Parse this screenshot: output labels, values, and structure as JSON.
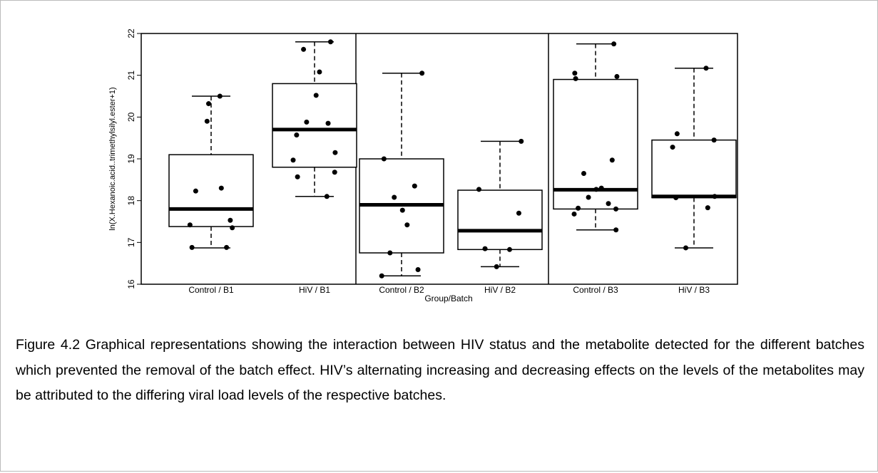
{
  "chart_data": {
    "type": "box",
    "ylabel": "ln(X.Hexanoic.acid..trimethylsilyl.ester+1)",
    "xlabel": "Group/Batch",
    "ylim": [
      16,
      22
    ],
    "yticks": [
      16,
      17,
      18,
      19,
      20,
      21,
      22
    ],
    "categories": [
      "Control / B1",
      "HiV / B1",
      "Control / B2",
      "HiV / B2",
      "Control / B3",
      "HiV / B3"
    ],
    "boxes": [
      {
        "min": 16.87,
        "q1": 17.38,
        "median": 17.8,
        "q3": 19.1,
        "max": 20.5,
        "points": [
          20.5,
          20.32,
          19.9,
          18.3,
          18.23,
          17.53,
          17.42,
          17.35,
          16.88,
          16.88
        ]
      },
      {
        "min": 18.1,
        "q1": 18.8,
        "median": 19.7,
        "q3": 20.8,
        "max": 21.8,
        "points": [
          21.8,
          21.62,
          21.08,
          20.52,
          19.88,
          19.85,
          19.57,
          19.15,
          18.97,
          18.68,
          18.57,
          18.1
        ]
      },
      {
        "min": 16.2,
        "q1": 16.75,
        "median": 17.9,
        "q3": 19.0,
        "max": 21.05,
        "points": [
          21.05,
          19.0,
          18.35,
          18.08,
          17.77,
          17.42,
          16.75,
          16.35,
          16.2
        ]
      },
      {
        "min": 16.42,
        "q1": 16.83,
        "median": 17.28,
        "q3": 18.25,
        "max": 19.42,
        "points": [
          19.42,
          18.27,
          17.7,
          16.85,
          16.83,
          16.42
        ]
      },
      {
        "min": 17.3,
        "q1": 17.8,
        "median": 18.26,
        "q3": 20.9,
        "max": 21.75,
        "points": [
          21.75,
          21.05,
          20.97,
          20.92,
          18.97,
          18.65,
          18.3,
          18.27,
          18.08,
          17.93,
          17.82,
          17.8,
          17.68,
          17.3
        ]
      },
      {
        "min": 16.87,
        "q1": 18.07,
        "median": 18.1,
        "q3": 19.45,
        "max": 21.17,
        "points": [
          21.17,
          19.6,
          19.45,
          19.28,
          18.1,
          18.07,
          17.83,
          16.87
        ]
      }
    ]
  },
  "caption": "Figure 4.2 Graphical representations showing the interaction between HIV status and the metabolite detected for the different batches which prevented the removal of the batch effect. HIV’s alternating increasing and decreasing effects on the levels of the metabolites may be attributed to the differing viral load levels of the respective batches."
}
